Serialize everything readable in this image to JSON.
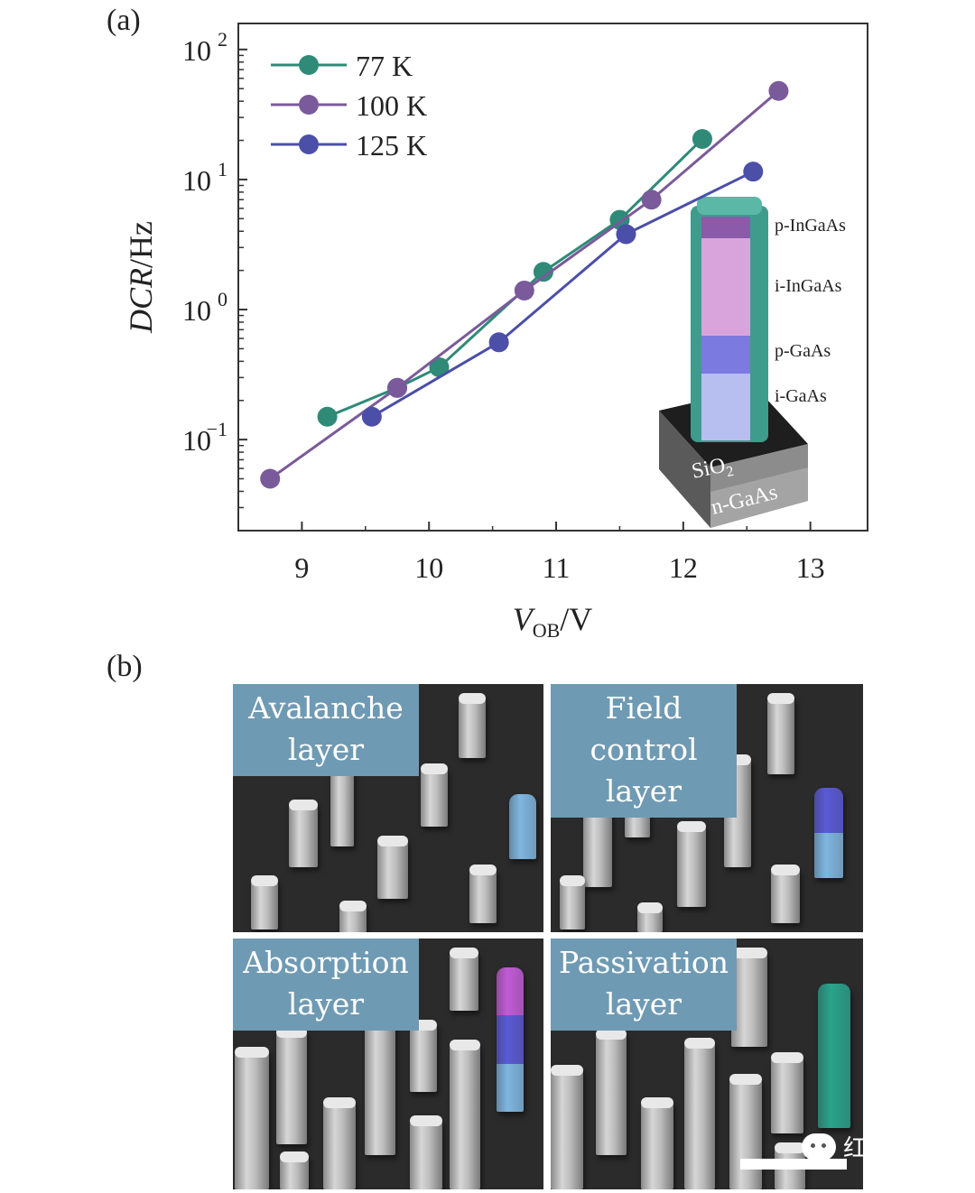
{
  "panel_a_label": "(a)",
  "panel_b_label": "(b)",
  "chart_data": {
    "type": "line",
    "title": "",
    "xlabel": "V",
    "xlabel_subscript": "OB",
    "xlabel_unit": "/V",
    "ylabel": "DCR",
    "ylabel_unit": "/Hz",
    "xlim": [
      8.5,
      13.45
    ],
    "ylim_log10": [
      -1.7,
      2.2
    ],
    "yscale": "log",
    "xticks": [
      "9",
      "10",
      "11",
      "12",
      "13"
    ],
    "xtick_values": [
      9,
      10,
      11,
      12,
      13
    ],
    "yticks": [
      {
        "base": "10",
        "exp": "2",
        "log": 2
      },
      {
        "base": "10",
        "exp": "1",
        "log": 1
      },
      {
        "base": "10",
        "exp": "0",
        "log": 0
      },
      {
        "base": "10",
        "exp": "−1",
        "log": -1
      }
    ],
    "grid": false,
    "legend_position": "top-left",
    "series": [
      {
        "name": "77 K",
        "color": "#2f8a78",
        "x": [
          9.2,
          9.75,
          10.08,
          10.9,
          11.5,
          12.15
        ],
        "y": [
          0.15,
          0.25,
          0.36,
          1.95,
          4.9,
          20.5
        ]
      },
      {
        "name": "100 K",
        "color": "#7a5a9a",
        "x": [
          8.75,
          9.75,
          10.75,
          11.75,
          12.75
        ],
        "y": [
          0.05,
          0.25,
          1.4,
          7.0,
          48.0
        ]
      },
      {
        "name": "125 K",
        "color": "#4b4fa8",
        "x": [
          9.55,
          10.55,
          11.55,
          12.55
        ],
        "y": [
          0.15,
          0.56,
          3.8,
          11.5
        ]
      }
    ],
    "inset": {
      "layers": [
        "p-InGaAs",
        "i-InGaAs",
        "p-GaAs",
        "i-GaAs"
      ],
      "substrate_top": "SiO",
      "substrate_top_sub": "2",
      "substrate": "n-GaAs"
    }
  },
  "panel_b": {
    "tiles": [
      {
        "label_line1": "Avalanche",
        "label_line2": "layer",
        "colors": [
          "#7fb6e0"
        ]
      },
      {
        "label_line1": "Field control",
        "label_line2": "layer",
        "colors": [
          "#5a5ad6",
          "#7fb6e0"
        ]
      },
      {
        "label_line1": "Absorption",
        "label_line2": "layer",
        "colors": [
          "#c25bd6",
          "#5a5ad6",
          "#7fb6e0"
        ]
      },
      {
        "label_line1": "Passivation",
        "label_line2": "layer",
        "colors": [
          "#2aa38c"
        ]
      }
    ]
  },
  "watermark": "红外芯闻"
}
